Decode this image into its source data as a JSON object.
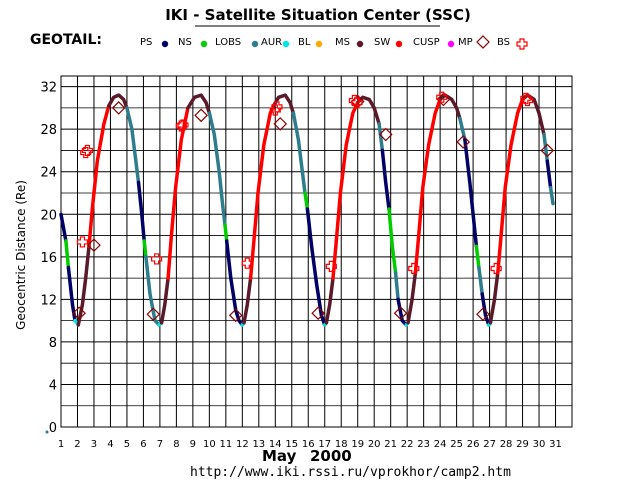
{
  "chart_data": {
    "type": "line",
    "title": "IKI - Satellite Situation Center (SSC)",
    "satellite": "GEOTAIL:",
    "ylabel": "Geocentric Distance (Re)",
    "xlabel_month": "May",
    "xlabel_year": "2000",
    "url": "http://www.iki.rssi.ru/vprokhor/camp2.htm",
    "ylim": [
      0,
      33
    ],
    "xlim": [
      1,
      32
    ],
    "y_ticks": [
      "0",
      "4",
      "8",
      "12",
      "16",
      "20",
      "24",
      "28",
      "32"
    ],
    "x_ticks": [
      "1",
      "2",
      "3",
      "4",
      "5",
      "6",
      "7",
      "8",
      "9",
      "10",
      "11",
      "12",
      "13",
      "14",
      "15",
      "16",
      "17",
      "18",
      "19",
      "20",
      "21",
      "22",
      "23",
      "24",
      "25",
      "26",
      "27",
      "28",
      "29",
      "30",
      "31"
    ],
    "grid": true,
    "legend": [
      {
        "label": "PS",
        "color": "#000066",
        "marker": "dot"
      },
      {
        "label": "NS",
        "color": "#00cc00",
        "marker": "dot"
      },
      {
        "label": "LOBS",
        "color": "#2e7d8c",
        "marker": "dot"
      },
      {
        "label": "AUR",
        "color": "#00e5e5",
        "marker": "dot"
      },
      {
        "label": "BL",
        "color": "#ffaa00",
        "marker": "dot"
      },
      {
        "label": "MS",
        "color": "#5a1a2a",
        "marker": "dot"
      },
      {
        "label": "SW",
        "color": "#ff0000",
        "marker": "dot"
      },
      {
        "label": "CUSP",
        "color": "#ff00ff",
        "marker": "dot"
      },
      {
        "label": "MP",
        "color": "#8b0000",
        "marker": "diamond"
      },
      {
        "label": "BS",
        "color": "#ff0000",
        "marker": "cross"
      }
    ],
    "segments": [
      {
        "region": "PS",
        "points": [
          [
            1.0,
            20.0
          ],
          [
            1.3,
            17.5
          ]
        ]
      },
      {
        "region": "NS",
        "points": [
          [
            1.3,
            17.5
          ],
          [
            1.45,
            15.0
          ]
        ]
      },
      {
        "region": "PS",
        "points": [
          [
            1.45,
            15.0
          ],
          [
            1.7,
            11.5
          ],
          [
            1.85,
            10.0
          ]
        ]
      },
      {
        "region": "AUR",
        "points": [
          [
            1.85,
            10.0
          ],
          [
            2.05,
            9.6
          ]
        ]
      },
      {
        "region": "MS",
        "points": [
          [
            2.05,
            9.6
          ],
          [
            2.3,
            11.5
          ],
          [
            2.5,
            14.0
          ],
          [
            2.7,
            17.0
          ]
        ]
      },
      {
        "region": "SW",
        "points": [
          [
            2.7,
            17.0
          ],
          [
            2.9,
            20.5
          ],
          [
            3.2,
            25.0
          ],
          [
            3.6,
            28.5
          ],
          [
            3.9,
            30.2
          ]
        ]
      },
      {
        "region": "MS",
        "points": [
          [
            3.9,
            30.2
          ],
          [
            4.2,
            31.0
          ],
          [
            4.5,
            31.2
          ],
          [
            4.8,
            30.8
          ],
          [
            5.0,
            30.0
          ]
        ]
      },
      {
        "region": "LOBS",
        "points": [
          [
            5.0,
            30.0
          ],
          [
            5.3,
            28.0
          ],
          [
            5.5,
            25.5
          ],
          [
            5.7,
            23.0
          ]
        ]
      },
      {
        "region": "PS",
        "points": [
          [
            5.7,
            23.0
          ],
          [
            5.9,
            20.0
          ],
          [
            6.05,
            17.5
          ]
        ]
      },
      {
        "region": "NS",
        "points": [
          [
            6.05,
            17.5
          ],
          [
            6.15,
            16.0
          ]
        ]
      },
      {
        "region": "LOBS",
        "points": [
          [
            6.15,
            16.0
          ],
          [
            6.4,
            12.5
          ],
          [
            6.7,
            10.0
          ],
          [
            6.95,
            9.6
          ]
        ]
      },
      {
        "region": "AUR",
        "points": [
          [
            6.95,
            9.6
          ],
          [
            7.1,
            9.8
          ]
        ]
      },
      {
        "region": "MS",
        "points": [
          [
            7.1,
            9.8
          ],
          [
            7.3,
            11.5
          ],
          [
            7.5,
            14.0
          ]
        ]
      },
      {
        "region": "SW",
        "points": [
          [
            7.5,
            14.0
          ],
          [
            7.7,
            18.0
          ],
          [
            7.95,
            22.5
          ],
          [
            8.3,
            27.0
          ],
          [
            8.7,
            30.0
          ]
        ]
      },
      {
        "region": "MS",
        "points": [
          [
            8.7,
            30.0
          ],
          [
            9.1,
            31.0
          ],
          [
            9.5,
            31.2
          ],
          [
            9.8,
            30.5
          ],
          [
            10.0,
            29.5
          ]
        ]
      },
      {
        "region": "LOBS",
        "points": [
          [
            10.0,
            29.5
          ],
          [
            10.3,
            27.5
          ],
          [
            10.6,
            24.0
          ],
          [
            10.8,
            21.0
          ],
          [
            10.95,
            19.0
          ]
        ]
      },
      {
        "region": "NS",
        "points": [
          [
            10.95,
            19.0
          ],
          [
            11.05,
            17.5
          ]
        ]
      },
      {
        "region": "PS",
        "points": [
          [
            11.05,
            17.5
          ],
          [
            11.3,
            14.0
          ],
          [
            11.6,
            11.0
          ],
          [
            11.8,
            10.0
          ],
          [
            12.0,
            9.6
          ]
        ]
      },
      {
        "region": "AUR",
        "points": [
          [
            12.0,
            9.6
          ],
          [
            12.1,
            9.8
          ]
        ]
      },
      {
        "region": "MS",
        "points": [
          [
            12.1,
            9.8
          ],
          [
            12.3,
            11.5
          ],
          [
            12.5,
            14.0
          ]
        ]
      },
      {
        "region": "SW",
        "points": [
          [
            12.5,
            14.0
          ],
          [
            12.7,
            17.5
          ],
          [
            12.95,
            22.0
          ],
          [
            13.3,
            26.5
          ],
          [
            13.7,
            29.5
          ],
          [
            13.9,
            30.2
          ]
        ]
      },
      {
        "region": "MS",
        "points": [
          [
            13.9,
            30.2
          ],
          [
            14.2,
            31.0
          ],
          [
            14.6,
            31.2
          ],
          [
            14.9,
            30.5
          ],
          [
            15.1,
            29.5
          ]
        ]
      },
      {
        "region": "LOBS",
        "points": [
          [
            15.1,
            29.5
          ],
          [
            15.4,
            27.0
          ],
          [
            15.6,
            24.5
          ],
          [
            15.8,
            22.0
          ]
        ]
      },
      {
        "region": "NS",
        "points": [
          [
            15.8,
            22.0
          ],
          [
            15.95,
            20.5
          ]
        ]
      },
      {
        "region": "PS",
        "points": [
          [
            15.95,
            20.5
          ],
          [
            16.2,
            17.0
          ],
          [
            16.5,
            13.5
          ],
          [
            16.8,
            10.5
          ],
          [
            17.0,
            9.6
          ]
        ]
      },
      {
        "region": "AUR",
        "points": [
          [
            17.0,
            9.6
          ],
          [
            17.1,
            9.8
          ]
        ]
      },
      {
        "region": "MS",
        "points": [
          [
            17.1,
            9.8
          ],
          [
            17.3,
            11.5
          ],
          [
            17.5,
            14.0
          ]
        ]
      },
      {
        "region": "SW",
        "points": [
          [
            17.5,
            14.0
          ],
          [
            17.7,
            17.5
          ],
          [
            17.95,
            22.0
          ],
          [
            18.3,
            26.5
          ],
          [
            18.7,
            29.5
          ],
          [
            19.0,
            30.5
          ]
        ]
      },
      {
        "region": "MS",
        "points": [
          [
            19.0,
            30.5
          ],
          [
            19.3,
            31.0
          ],
          [
            19.7,
            30.8
          ],
          [
            20.0,
            30.0
          ],
          [
            20.3,
            28.5
          ]
        ]
      },
      {
        "region": "LOBS",
        "points": [
          [
            20.3,
            28.5
          ],
          [
            20.5,
            26.0
          ]
        ]
      },
      {
        "region": "PS",
        "points": [
          [
            20.5,
            26.0
          ],
          [
            20.7,
            23.0
          ],
          [
            20.9,
            20.5
          ]
        ]
      },
      {
        "region": "NS",
        "points": [
          [
            20.9,
            20.5
          ],
          [
            21.1,
            17.0
          ],
          [
            21.3,
            14.5
          ]
        ]
      },
      {
        "region": "LOBS",
        "points": [
          [
            21.3,
            14.5
          ],
          [
            21.45,
            12.0
          ]
        ]
      },
      {
        "region": "PS",
        "points": [
          [
            21.45,
            12.0
          ],
          [
            21.7,
            10.0
          ],
          [
            21.95,
            9.6
          ]
        ]
      },
      {
        "region": "AUR",
        "points": [
          [
            21.95,
            9.6
          ],
          [
            22.05,
            9.8
          ]
        ]
      },
      {
        "region": "MS",
        "points": [
          [
            22.05,
            9.8
          ],
          [
            22.3,
            12.0
          ],
          [
            22.5,
            14.5
          ]
        ]
      },
      {
        "region": "SW",
        "points": [
          [
            22.5,
            14.5
          ],
          [
            22.7,
            18.0
          ],
          [
            22.95,
            22.5
          ],
          [
            23.3,
            26.5
          ],
          [
            23.7,
            29.5
          ],
          [
            24.0,
            30.8
          ]
        ]
      },
      {
        "region": "MS",
        "points": [
          [
            24.0,
            30.8
          ],
          [
            24.3,
            31.2
          ],
          [
            24.7,
            30.8
          ],
          [
            25.0,
            30.0
          ],
          [
            25.2,
            29.0
          ]
        ]
      },
      {
        "region": "LOBS",
        "points": [
          [
            25.2,
            29.0
          ],
          [
            25.5,
            27.0
          ]
        ]
      },
      {
        "region": "PS",
        "points": [
          [
            25.5,
            27.0
          ],
          [
            25.8,
            23.0
          ],
          [
            26.0,
            20.0
          ],
          [
            26.2,
            17.0
          ]
        ]
      },
      {
        "region": "NS",
        "points": [
          [
            26.2,
            17.0
          ],
          [
            26.35,
            15.0
          ]
        ]
      },
      {
        "region": "LOBS",
        "points": [
          [
            26.35,
            15.0
          ],
          [
            26.55,
            12.5
          ]
        ]
      },
      {
        "region": "PS",
        "points": [
          [
            26.55,
            12.5
          ],
          [
            26.75,
            10.5
          ],
          [
            26.95,
            9.6
          ]
        ]
      },
      {
        "region": "AUR",
        "points": [
          [
            26.95,
            9.6
          ],
          [
            27.05,
            9.8
          ]
        ]
      },
      {
        "region": "MS",
        "points": [
          [
            27.05,
            9.8
          ],
          [
            27.3,
            12.0
          ],
          [
            27.5,
            14.5
          ]
        ]
      },
      {
        "region": "SW",
        "points": [
          [
            27.5,
            14.5
          ],
          [
            27.7,
            18.0
          ],
          [
            27.95,
            22.5
          ],
          [
            28.3,
            26.5
          ],
          [
            28.7,
            29.5
          ],
          [
            29.0,
            30.8
          ]
        ]
      },
      {
        "region": "MS",
        "points": [
          [
            29.0,
            30.8
          ],
          [
            29.3,
            31.2
          ],
          [
            29.7,
            30.8
          ],
          [
            30.0,
            29.5
          ],
          [
            30.3,
            27.5
          ]
        ]
      },
      {
        "region": "LOBS",
        "points": [
          [
            30.3,
            27.5
          ],
          [
            30.5,
            25.0
          ]
        ]
      },
      {
        "region": "PS",
        "points": [
          [
            30.5,
            25.0
          ],
          [
            30.7,
            22.5
          ]
        ]
      },
      {
        "region": "LOBS",
        "points": [
          [
            30.7,
            22.5
          ],
          [
            30.85,
            21.0
          ]
        ]
      }
    ],
    "mp_crossings": [
      [
        2.1,
        10.7
      ],
      [
        3.0,
        17.1
      ],
      [
        4.5,
        30.0
      ],
      [
        6.6,
        10.6
      ],
      [
        9.5,
        29.3
      ],
      [
        11.6,
        10.5
      ],
      [
        14.3,
        28.5
      ],
      [
        16.6,
        10.7
      ],
      [
        19.0,
        30.6
      ],
      [
        20.7,
        27.5
      ],
      [
        21.6,
        10.7
      ],
      [
        24.2,
        30.8
      ],
      [
        25.4,
        26.8
      ],
      [
        26.6,
        10.6
      ],
      [
        30.5,
        26.0
      ]
    ],
    "bs_crossings": [
      [
        2.3,
        17.4
      ],
      [
        2.5,
        25.8
      ],
      [
        2.6,
        26.0
      ],
      [
        6.8,
        15.8
      ],
      [
        8.3,
        28.3
      ],
      [
        8.4,
        28.4
      ],
      [
        12.3,
        15.4
      ],
      [
        14.0,
        29.8
      ],
      [
        14.1,
        30.1
      ],
      [
        17.4,
        15.1
      ],
      [
        18.8,
        30.7
      ],
      [
        18.95,
        30.5
      ],
      [
        22.4,
        14.9
      ],
      [
        24.1,
        31.0
      ],
      [
        27.4,
        14.9
      ],
      [
        29.2,
        30.9
      ],
      [
        29.3,
        30.7
      ]
    ]
  }
}
